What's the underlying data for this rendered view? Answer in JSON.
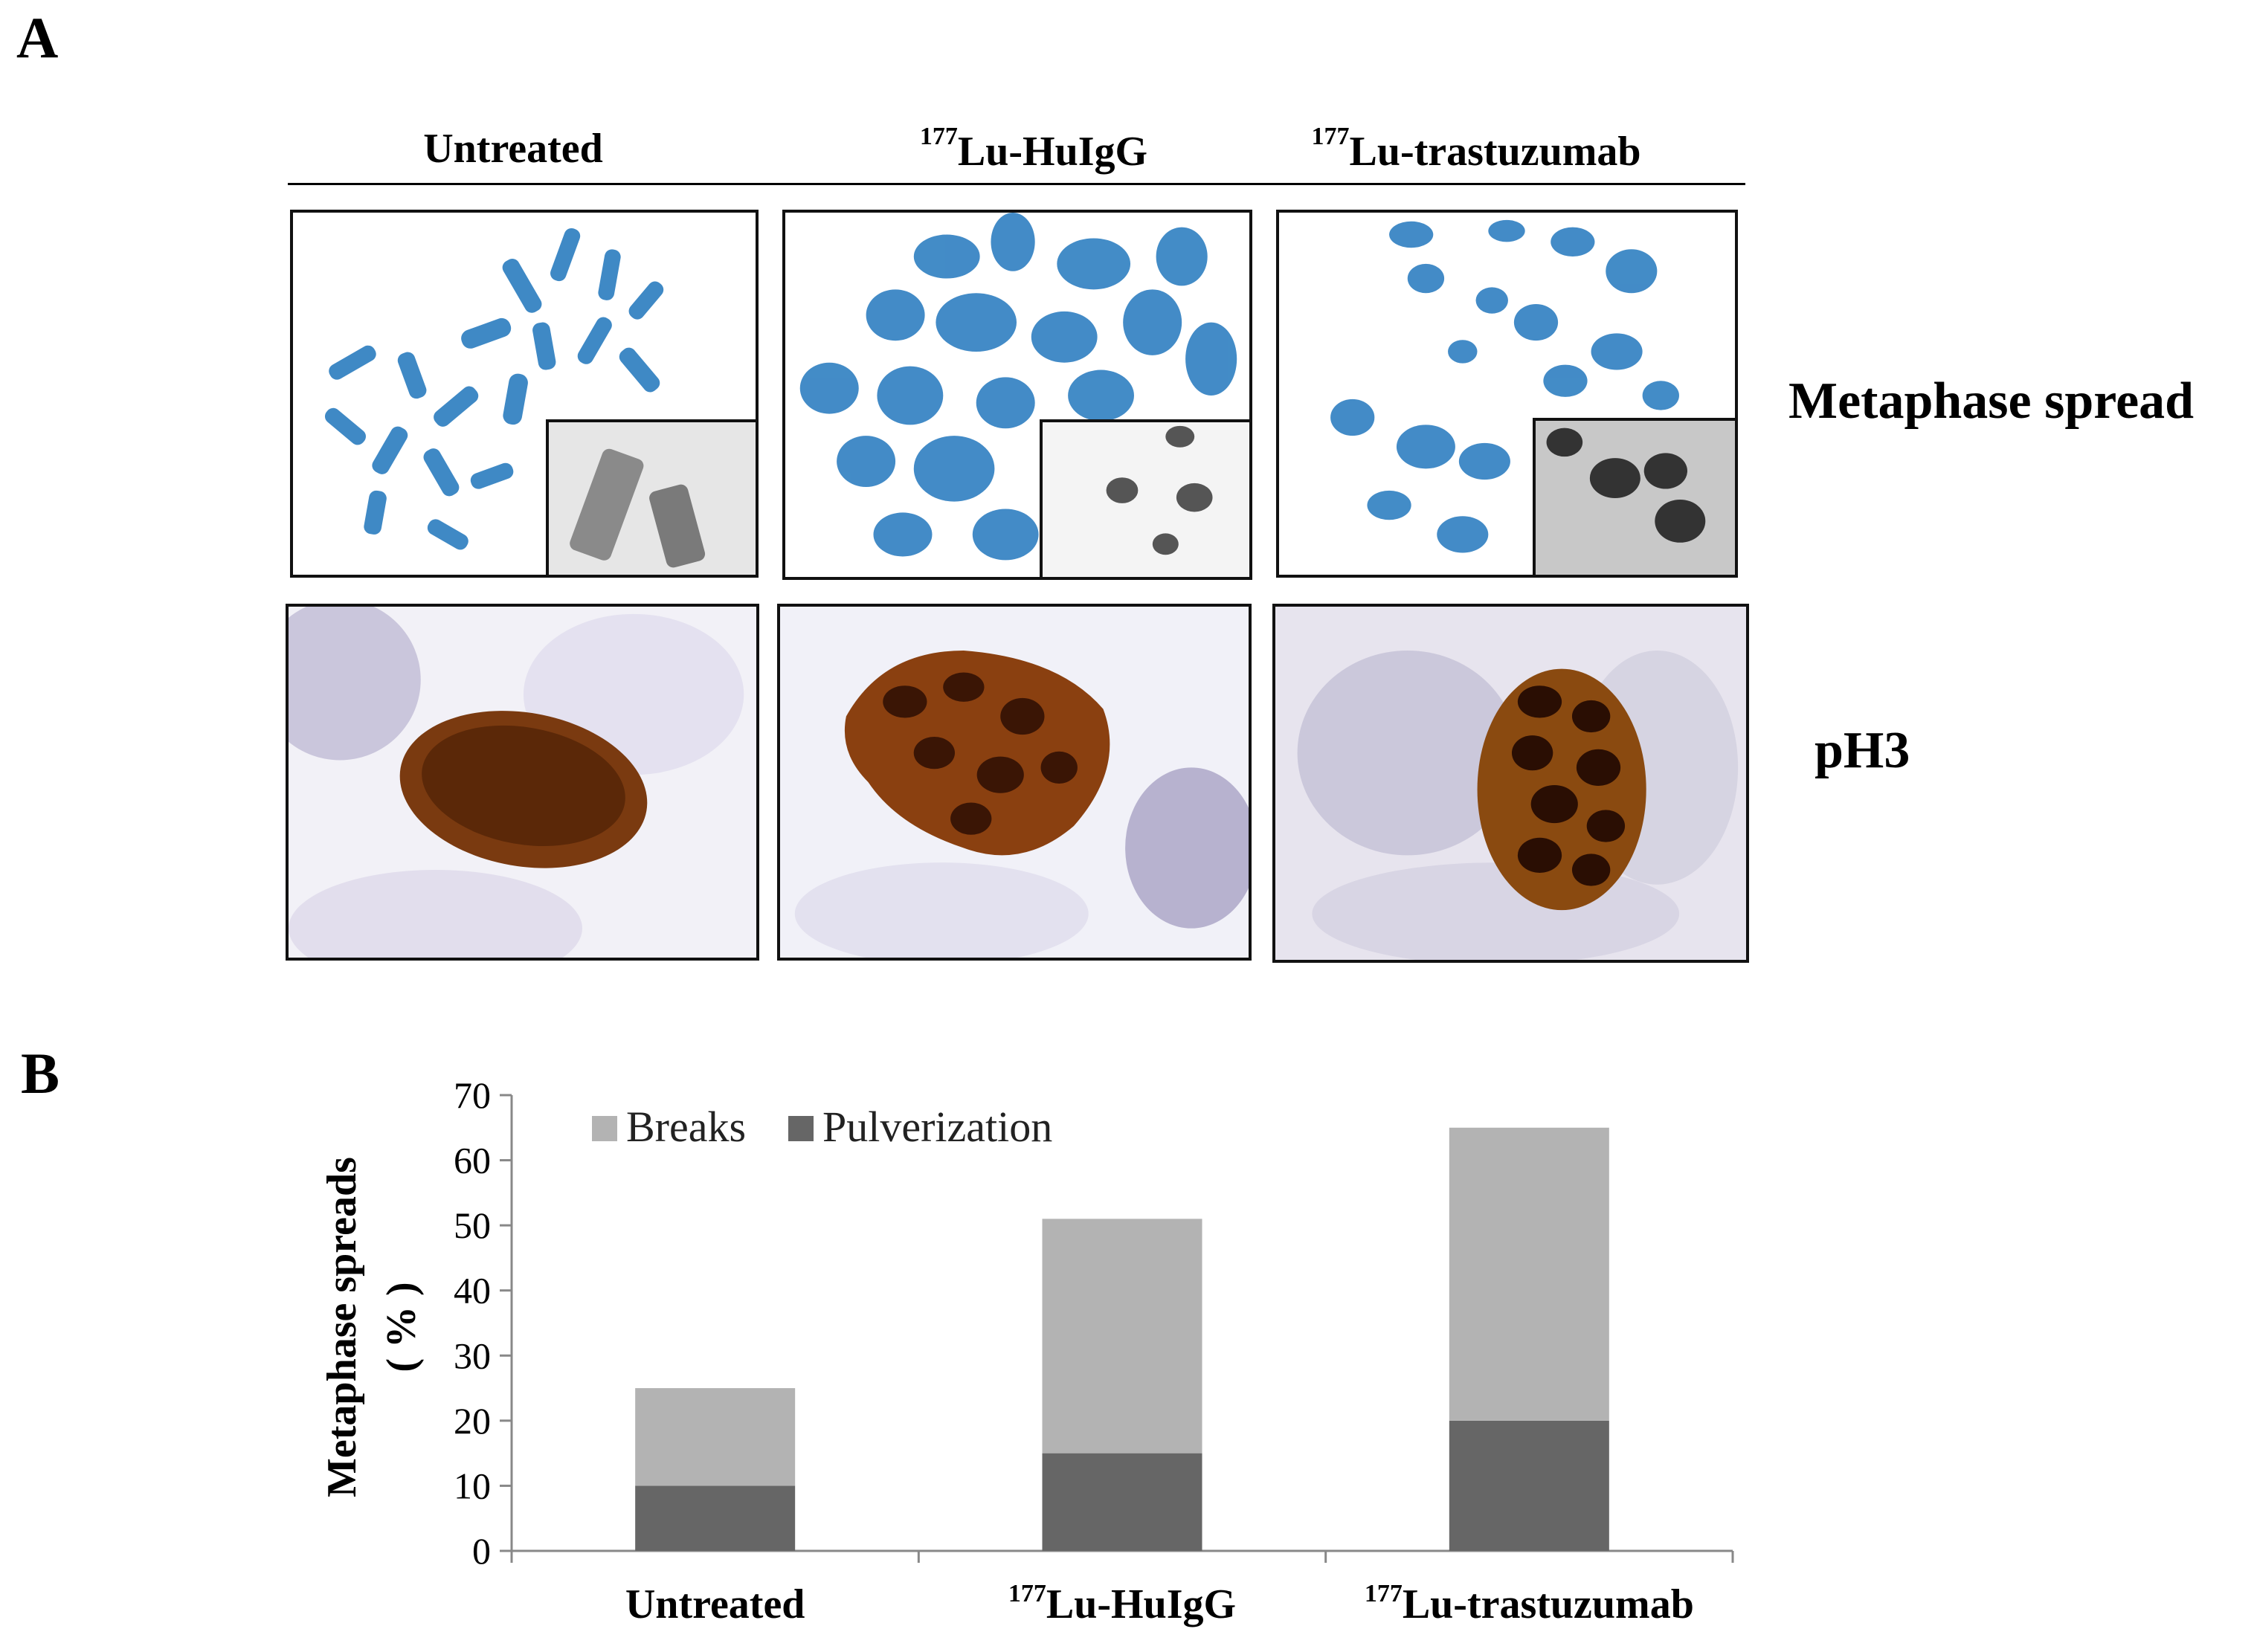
{
  "panel_a": {
    "letter": "A",
    "columns": [
      {
        "label": "Untreated",
        "sup": ""
      },
      {
        "label": "Lu-HuIgG",
        "sup": "177"
      },
      {
        "label": "Lu-trastuzumab",
        "sup": "177"
      }
    ],
    "rows": [
      {
        "label": "Metaphase spread",
        "stain_color": "#2f7fc1"
      },
      {
        "label": "pH3",
        "stain_color": "#7a3a10"
      }
    ]
  },
  "panel_b": {
    "letter": "B"
  },
  "chart_data": {
    "type": "bar",
    "stacked": true,
    "categories": [
      "Untreated",
      "Lu-HuIgG",
      "Lu-trastuzumab"
    ],
    "category_sups": [
      "",
      "177",
      "177"
    ],
    "series": [
      {
        "name": "Pulverization",
        "values": [
          10,
          15,
          20
        ],
        "color": "#666666"
      },
      {
        "name": "Breaks",
        "values": [
          15,
          36,
          45
        ],
        "color": "#b3b3b3"
      }
    ],
    "legend_order": [
      "Breaks",
      "Pulverization"
    ],
    "legend_position": "top-left",
    "ylabel_line1": "Metaphase spreads",
    "ylabel_line2": "( % )",
    "xlabel": "",
    "ylim": [
      0,
      70
    ],
    "yticks": [
      0,
      10,
      20,
      30,
      40,
      50,
      60,
      70
    ],
    "grid": false
  }
}
